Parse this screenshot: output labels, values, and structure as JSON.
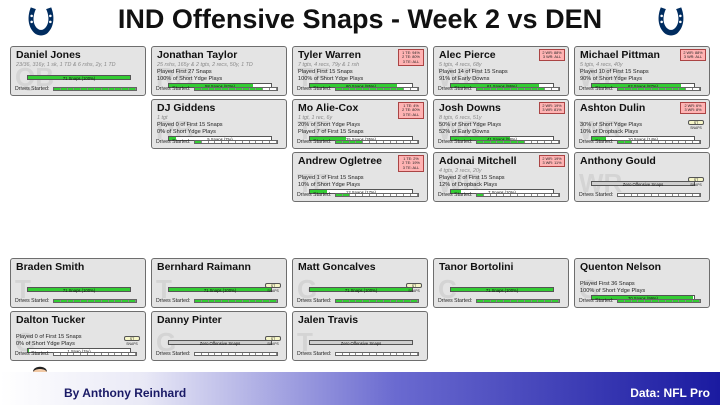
{
  "title": "IND Offensive Snaps - Week 2 vs DEN",
  "logo_icon": "horseshoe-icon",
  "team_color": "#002c5f",
  "footer": {
    "byline": "By Anthony Reinhard",
    "source": "Data: NFL Pro"
  },
  "drives_label": "Drives Started:",
  "players": [
    {
      "name": "Daniel Jones",
      "pos": "QB",
      "stats": "23/36, 316y, 1 sk, 1 TD & 6 rshs, 2y, 1 TD",
      "line1": "",
      "line2": "",
      "snap_label": "71 Snaps (100%)",
      "snap_pct": 1.0,
      "badge": [],
      "chip": ""
    },
    {
      "name": "Jonathan Taylor",
      "pos": "RB",
      "stats": "25 rshs, 165y & 2 tgts, 2 recs, 50y, 1 TD",
      "line1": "Played First 27 Snaps",
      "line2": "100% of Short Ydge Plays",
      "snap_label": "58 Snaps (82%)",
      "snap_pct": 0.82,
      "badge": [],
      "chip": ""
    },
    {
      "name": "Tyler Warren",
      "pos": "TE",
      "stats": "7 tgts, 4 recs, 79y & 1 rsh",
      "line1": "Played First 15 Snaps",
      "line2": "100% of Short Ydge Plays",
      "snap_label": "60 Snaps (85%)",
      "snap_pct": 0.85,
      "badge": [
        "1 TE: 94%",
        "2 TE: 80%",
        "3 TE: ALL"
      ],
      "chip": ""
    },
    {
      "name": "Alec Pierce",
      "pos": "WR",
      "stats": "5 tgts, 4 recs, 68y",
      "line1": "Played 14 of First 15 Snaps",
      "line2": "91% of Early Downs",
      "snap_label": "61 Snaps (86%)",
      "snap_pct": 0.86,
      "badge": [
        "2 WR: 88%",
        "3 WR: ALL"
      ],
      "chip": ""
    },
    {
      "name": "Michael Pittman",
      "pos": "WR",
      "stats": "5 tgts, 4 recs, 40y",
      "line1": "Played 10 of First 15 Snaps",
      "line2": "90% of Short Ydge Plays",
      "snap_label": "62 Snaps (87%)",
      "snap_pct": 0.87,
      "badge": [
        "2 WR: 88%",
        "3 WR: ALL"
      ],
      "chip": ""
    },
    {
      "name": "DJ Giddens",
      "pos": "RB",
      "stats": "1 tgt",
      "line1": "Played 0 of First 15 Snaps",
      "line2": "0% of Short Ydge Plays",
      "snap_label": "5 Snaps (7%)",
      "snap_pct": 0.07,
      "badge": [],
      "chip": ""
    },
    {
      "name": "Mo Alie-Cox",
      "pos": "TE",
      "stats": "1 tgt, 1 rec, 6y",
      "line1": "20% of Short Ydge Plays",
      "line2": "Played 7 of First 15 Snaps",
      "snap_label": "25 Snaps (35%)",
      "snap_pct": 0.35,
      "badge": [
        "1 TE: 4%",
        "2 TE: 80%",
        "3 TE: ALL"
      ],
      "chip": ""
    },
    {
      "name": "Josh Downs",
      "pos": "WR",
      "stats": "8 tgts, 6 recs, 51y",
      "line1": "50% of Short Ydge Plays",
      "line2": "52% of Early Downs",
      "snap_label": "41 Snaps (58%)",
      "snap_pct": 0.58,
      "badge": [
        "2 WR: 19%",
        "3 WR: 81%"
      ],
      "chip": ""
    },
    {
      "name": "Ashton Dulin",
      "pos": "WR",
      "stats": "",
      "line1": "30% of Short Ydge Plays",
      "line2": "10% of Dropback Plays",
      "snap_label": "10 Snaps (14%)",
      "snap_pct": 0.14,
      "badge": [
        "2 WR: 6%",
        "3 WR: 8%"
      ],
      "chip": "ST SNAPS"
    },
    {
      "name": "Andrew Ogletree",
      "pos": "TE",
      "stats": "",
      "line1": "Played 1 of First 15 Snaps",
      "line2": "10% of Short Ydge Plays",
      "snap_label": "12 Snaps (17%)",
      "snap_pct": 0.17,
      "badge": [
        "1 TE: 2%",
        "2 TE: 19%",
        "3 TE: ALL"
      ],
      "chip": ""
    },
    {
      "name": "Adonai Mitchell",
      "pos": "WR",
      "stats": "4 tgts, 2 recs, 20y",
      "line1": "Played 2 of First 15 Snaps",
      "line2": "12% of Dropback Plays",
      "snap_label": "7 Snaps (10%)",
      "snap_pct": 0.1,
      "badge": [
        "2 WR: 19%",
        "3 WR: 11%"
      ],
      "chip": ""
    },
    {
      "name": "Anthony Gould",
      "pos": "WR",
      "stats": "",
      "line1": "",
      "line2": "",
      "snap_label": "Zero Offensive Snaps",
      "snap_pct": 0,
      "badge": [],
      "chip": "ST SNAPS"
    },
    {
      "name": "Braden Smith",
      "pos": "T",
      "stats": "",
      "line1": "",
      "line2": "",
      "snap_label": "71 Snaps (100%)",
      "snap_pct": 1.0,
      "badge": [],
      "chip": ""
    },
    {
      "name": "Bernhard Raimann",
      "pos": "T",
      "stats": "",
      "line1": "",
      "line2": "",
      "snap_label": "71 Snaps (100%)",
      "snap_pct": 1.0,
      "badge": [],
      "chip": "ST SNAPS"
    },
    {
      "name": "Matt Goncalves",
      "pos": "G",
      "stats": "",
      "line1": "",
      "line2": "",
      "snap_label": "71 Snaps (100%)",
      "snap_pct": 1.0,
      "badge": [],
      "chip": "ST SNAPS"
    },
    {
      "name": "Tanor Bortolini",
      "pos": "C",
      "stats": "",
      "line1": "",
      "line2": "",
      "snap_label": "71 Snaps (100%)",
      "snap_pct": 1.0,
      "badge": [],
      "chip": ""
    },
    {
      "name": "Quenton Nelson",
      "pos": "G",
      "stats": "",
      "line1": "Played First 36 Snaps",
      "line2": "100% of Short Ydge Plays",
      "snap_label": "70 Snaps (99%)",
      "snap_pct": 0.99,
      "badge": [],
      "chip": ""
    },
    {
      "name": "Dalton Tucker",
      "pos": "G",
      "stats": "",
      "line1": "Played 0 of First 15 Snaps",
      "line2": "0% of Short Ydge Plays",
      "snap_label": "1 Snap (1%)",
      "snap_pct": 0.01,
      "badge": [],
      "chip": "ST SNAPS"
    },
    {
      "name": "Danny Pinter",
      "pos": "G",
      "stats": "",
      "line1": "",
      "line2": "",
      "snap_label": "Zero Offensive Snaps",
      "snap_pct": 0,
      "badge": [],
      "chip": "ST SNAPS"
    },
    {
      "name": "Jalen Travis",
      "pos": "T",
      "stats": "",
      "line1": "",
      "line2": "",
      "snap_label": "Zero Offensive Snaps",
      "snap_pct": 0,
      "badge": [],
      "chip": ""
    }
  ]
}
